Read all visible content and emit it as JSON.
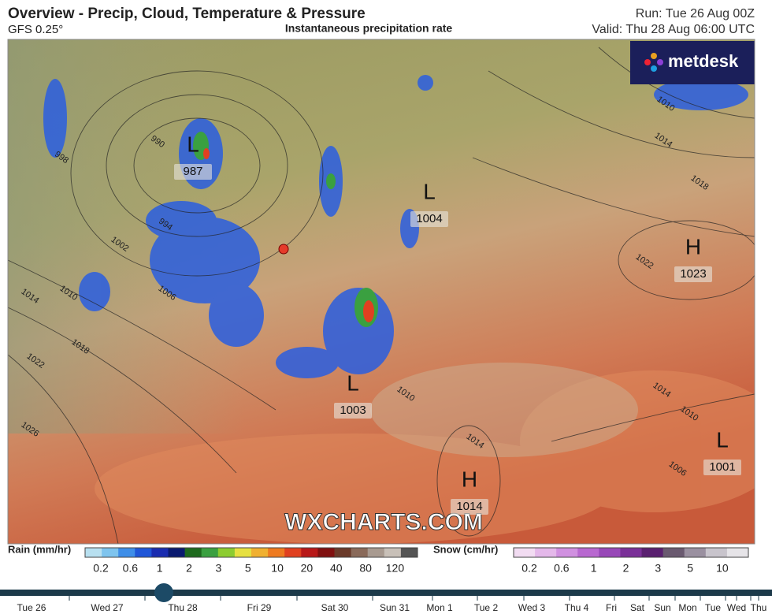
{
  "header": {
    "title": "Overview - Precip, Cloud, Temperature & Pressure",
    "model": "GFS 0.25°",
    "subtitle": "Instantaneous precipitation rate",
    "run": "Run: Tue 26 Aug 00Z",
    "valid": "Valid: Thu 28 Aug 06:00 UTC"
  },
  "logo": "metdesk",
  "watermark": "WXCHARTS.COM",
  "pressure_centers": [
    {
      "type": "L",
      "value": 987
    },
    {
      "type": "L",
      "value": 1004
    },
    {
      "type": "H",
      "value": 1023
    },
    {
      "type": "L",
      "value": 1003
    },
    {
      "type": "H",
      "value": 1014
    },
    {
      "type": "L",
      "value": 1001
    }
  ],
  "isobar_labels": [
    990,
    998,
    994,
    1002,
    1006,
    1010,
    1014,
    1018,
    1022,
    1026,
    1010,
    1014,
    1018,
    1022,
    1014,
    1010,
    1006,
    1010,
    1014
  ],
  "rain_legend": {
    "title": "Rain (mm/hr)",
    "ticks": [
      0.2,
      0.6,
      1,
      2,
      3,
      5,
      10,
      20,
      40,
      80,
      120
    ]
  },
  "snow_legend": {
    "title": "Snow (cm/hr)",
    "ticks": [
      0.2,
      0.6,
      1,
      2,
      3,
      5,
      10
    ]
  },
  "timeline": {
    "labels": [
      "Tue 26",
      "Wed 27",
      "Thu 28",
      "Fri 29",
      "Sat 30",
      "Sun 31",
      "Mon 1",
      "Tue 2",
      "Wed 3",
      "Thu 4",
      "Fri",
      "Sat",
      "Sun",
      "Mon",
      "Tue",
      "Wed",
      "Thu"
    ]
  }
}
